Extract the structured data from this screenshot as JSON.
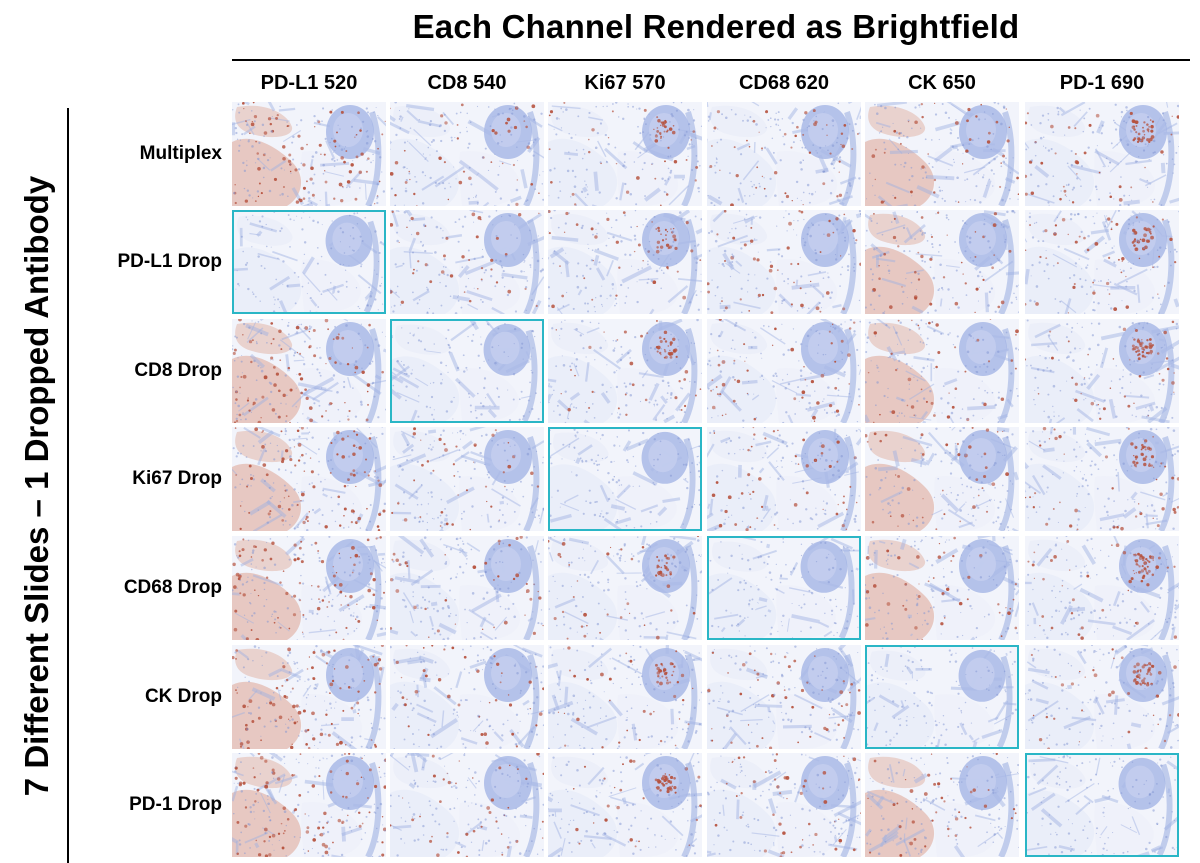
{
  "title": "Each Channel Rendered as Brightfield",
  "side_title": "7 Different Slides – 1 Dropped Antibody",
  "columns": [
    "PD-L1 520",
    "CD8 540",
    "Ki67 570",
    "CD68 620",
    "CK 650",
    "PD-1 690"
  ],
  "rows": [
    "Multiplex",
    "PD-L1 Drop",
    "CD8 Drop",
    "Ki67 Drop",
    "CD68 Drop",
    "CK Drop",
    "PD-1 Drop"
  ],
  "dropped_tile": {
    "row_to_column": [
      null,
      0,
      1,
      2,
      3,
      4,
      5
    ]
  },
  "colors": {
    "highlight_border": "#2ab6c6",
    "tissue_blue": "#9eb0e2",
    "stain_brown": "#b5503c",
    "background_tile": "#f2f4fb"
  }
}
